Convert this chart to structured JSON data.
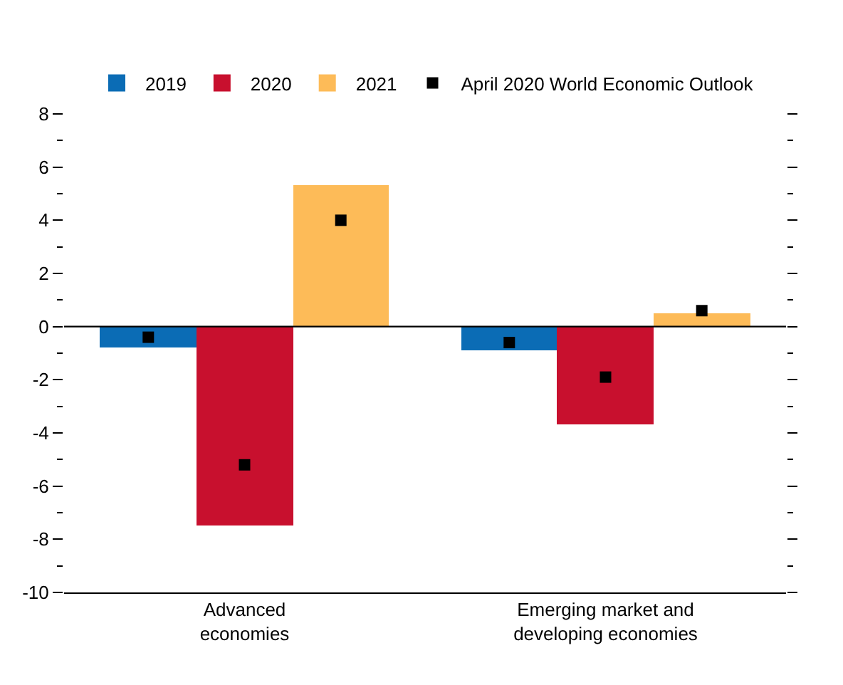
{
  "chart_data": {
    "type": "bar",
    "categories": [
      "Advanced economies",
      "Emerging market and developing economies"
    ],
    "series": [
      {
        "name": "2019",
        "color": "#0b6cb5",
        "values": [
          -0.8,
          -0.9
        ]
      },
      {
        "name": "2020",
        "color": "#c8102e",
        "values": [
          -7.5,
          -3.7
        ]
      },
      {
        "name": "2021",
        "color": "#fdbb58",
        "values": [
          5.3,
          0.5
        ]
      },
      {
        "name": "April 2020 World Economic Outlook",
        "type": "scatter",
        "color": "#000000",
        "x": [
          "Advanced economies",
          "Advanced economies",
          "Advanced economies",
          "Emerging market and developing economies",
          "Emerging market and developing economies",
          "Emerging market and developing economies"
        ],
        "values": [
          -0.4,
          -5.2,
          4.0,
          -0.6,
          -1.9,
          0.6
        ]
      }
    ],
    "ylim": [
      -10,
      8
    ],
    "yticks": [
      -10,
      {
        "value": -9,
        "label": null
      },
      -8,
      {
        "value": -7,
        "label": null
      },
      -6,
      {
        "value": -5,
        "label": null
      },
      -4,
      {
        "value": -3,
        "label": null
      },
      -2,
      {
        "value": -1,
        "label": null
      },
      0,
      {
        "value": 1,
        "label": null
      },
      2,
      {
        "value": 3,
        "label": null
      },
      4,
      {
        "value": 5,
        "label": null
      },
      6,
      {
        "value": 7,
        "label": null
      },
      8
    ],
    "ref_lines": [
      {
        "axis": "y",
        "value": 0,
        "color": "#000000"
      }
    ],
    "grid": false,
    "legend": "top",
    "marker": "square"
  }
}
